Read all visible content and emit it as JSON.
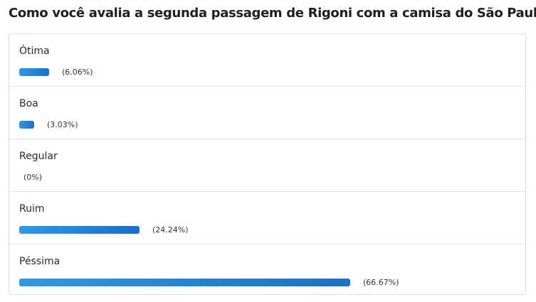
{
  "poll": {
    "title": "Como você avalia a segunda passagem de Rigoni com a camisa do São Paulo?",
    "bar_color": "#1f7fd6",
    "options": [
      {
        "label": "Ótima",
        "percent_text": "(6.06%)",
        "percent": 6.06
      },
      {
        "label": "Boa",
        "percent_text": "(3.03%)",
        "percent": 3.03
      },
      {
        "label": "Regular",
        "percent_text": "(0%)",
        "percent": 0
      },
      {
        "label": "Ruim",
        "percent_text": "(24.24%)",
        "percent": 24.24
      },
      {
        "label": "Péssima",
        "percent_text": "(66.67%)",
        "percent": 66.67
      }
    ]
  }
}
